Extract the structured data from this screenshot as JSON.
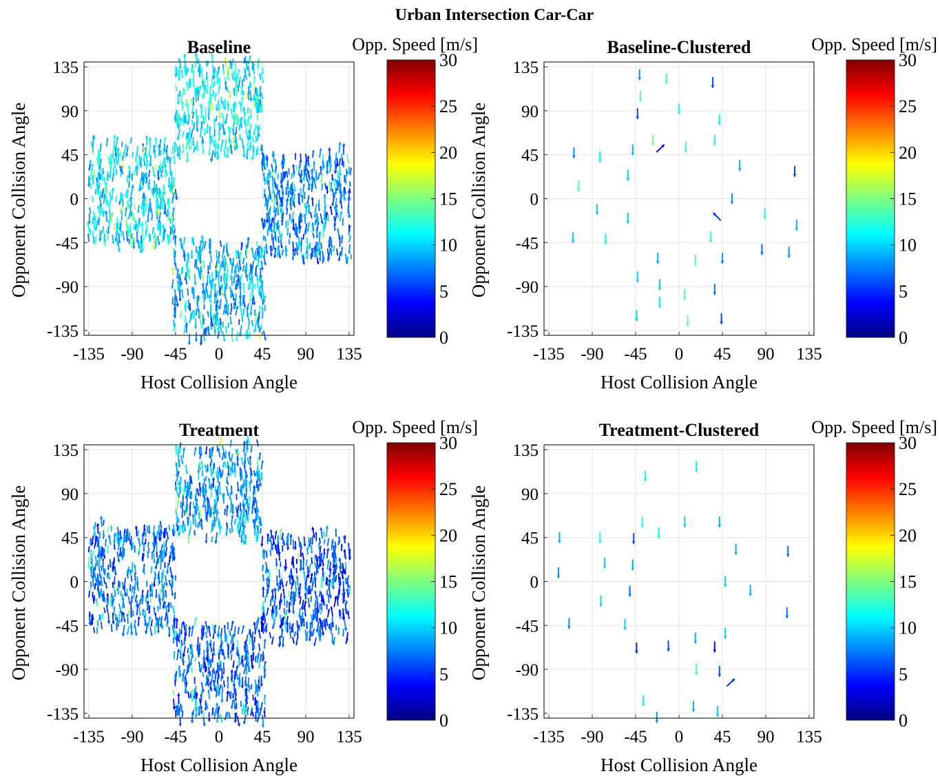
{
  "figure": {
    "suptitle": "Urban Intersection Car-Car"
  },
  "colormap": {
    "name": "jet",
    "stops": [
      "#00007f",
      "#0000ff",
      "#007fff",
      "#00ffff",
      "#7fff7f",
      "#ffff00",
      "#ff7f00",
      "#ff0000",
      "#7f0000"
    ]
  },
  "chart_data": [
    {
      "type": "quiver",
      "title": "Baseline",
      "xlabel": "Host Collision Angle",
      "ylabel": "Opponent Collision Angle",
      "xlim": [
        -140,
        140
      ],
      "ylim": [
        -140,
        140
      ],
      "xticks": [
        -135,
        -90,
        -45,
        0,
        45,
        90,
        135
      ],
      "yticks": [
        -135,
        -90,
        -45,
        0,
        45,
        90,
        135
      ],
      "grid": true,
      "colorbar": {
        "label": "Opp. Speed [m/s]",
        "range": [
          0,
          30
        ],
        "ticks": [
          0,
          5,
          10,
          15,
          20,
          25,
          30
        ]
      },
      "style": "dense",
      "regions": [
        {
          "x": [
            -135,
            -45
          ],
          "y": [
            -45,
            58
          ],
          "speed_mean": 10
        },
        {
          "x": [
            -45,
            45
          ],
          "y": [
            45,
            140
          ],
          "speed_mean": 11
        },
        {
          "x": [
            45,
            137
          ],
          "y": [
            -60,
            48
          ],
          "speed_mean": 7.5
        },
        {
          "x": [
            -48,
            48
          ],
          "y": [
            -140,
            -45
          ],
          "speed_mean": 9
        }
      ]
    },
    {
      "type": "quiver",
      "title": "Baseline-Clustered",
      "xlabel": "Host Collision Angle",
      "ylabel": "Opponent Collision Angle",
      "xlim": [
        -140,
        140
      ],
      "ylim": [
        -140,
        140
      ],
      "xticks": [
        -135,
        -90,
        -45,
        0,
        45,
        90,
        135
      ],
      "yticks": [
        -135,
        -90,
        -45,
        0,
        45,
        90,
        135
      ],
      "grid": true,
      "colorbar": {
        "label": "Opp. Speed [m/s]",
        "range": [
          0,
          30
        ],
        "ticks": [
          0,
          5,
          10,
          15,
          20,
          25,
          30
        ]
      },
      "style": "sparse",
      "points": [
        {
          "x": -41,
          "y": 132,
          "speed": 8
        },
        {
          "x": -13,
          "y": 128,
          "speed": 13
        },
        {
          "x": 35,
          "y": 124,
          "speed": 6
        },
        {
          "x": -40,
          "y": 110,
          "speed": 14
        },
        {
          "x": -43,
          "y": 92,
          "speed": 6
        },
        {
          "x": 0,
          "y": 97,
          "speed": 12
        },
        {
          "x": 42,
          "y": 86,
          "speed": 11
        },
        {
          "x": -27,
          "y": 65,
          "speed": 15
        },
        {
          "x": 37,
          "y": 65,
          "speed": 12
        },
        {
          "x": -109,
          "y": 52,
          "speed": 8
        },
        {
          "x": -82,
          "y": 48,
          "speed": 11
        },
        {
          "x": -48,
          "y": 55,
          "speed": 9
        },
        {
          "x": 7,
          "y": 58,
          "speed": 13
        },
        {
          "x": -23,
          "y": 48,
          "speed": 4,
          "dir": "se"
        },
        {
          "x": 63,
          "y": 39,
          "speed": 9
        },
        {
          "x": 120,
          "y": 33,
          "speed": 6
        },
        {
          "x": -53,
          "y": 29,
          "speed": 10
        },
        {
          "x": -104,
          "y": 18,
          "speed": 13
        },
        {
          "x": 55,
          "y": 5,
          "speed": 8
        },
        {
          "x": -85,
          "y": -6,
          "speed": 10
        },
        {
          "x": 89,
          "y": -10,
          "speed": 12
        },
        {
          "x": -53,
          "y": -15,
          "speed": 10
        },
        {
          "x": 122,
          "y": -22,
          "speed": 9
        },
        {
          "x": 43,
          "y": -22,
          "speed": 5,
          "dir": "ne"
        },
        {
          "x": 33,
          "y": -34,
          "speed": 12
        },
        {
          "x": -110,
          "y": -35,
          "speed": 10
        },
        {
          "x": -76,
          "y": -36,
          "speed": 11
        },
        {
          "x": 86,
          "y": -47,
          "speed": 7
        },
        {
          "x": 114,
          "y": -50,
          "speed": 8
        },
        {
          "x": -22,
          "y": -56,
          "speed": 9
        },
        {
          "x": 17,
          "y": -58,
          "speed": 14
        },
        {
          "x": 45,
          "y": -56,
          "speed": 8
        },
        {
          "x": -43,
          "y": -75,
          "speed": 10
        },
        {
          "x": -20,
          "y": -83,
          "speed": 10
        },
        {
          "x": 37,
          "y": -88,
          "speed": 7
        },
        {
          "x": 6,
          "y": -93,
          "speed": 13
        },
        {
          "x": -20,
          "y": -101,
          "speed": 11
        },
        {
          "x": -44,
          "y": -115,
          "speed": 10
        },
        {
          "x": 44,
          "y": -118,
          "speed": 6
        },
        {
          "x": 9,
          "y": -120,
          "speed": 14
        }
      ]
    },
    {
      "type": "quiver",
      "title": "Treatment",
      "xlabel": "Host Collision Angle",
      "ylabel": "Opponent Collision Angle",
      "xlim": [
        -140,
        140
      ],
      "ylim": [
        -140,
        140
      ],
      "xticks": [
        -135,
        -90,
        -45,
        0,
        45,
        90,
        135
      ],
      "yticks": [
        -135,
        -90,
        -45,
        0,
        45,
        90,
        135
      ],
      "grid": true,
      "colorbar": {
        "label": "Opp. Speed [m/s]",
        "range": [
          0,
          30
        ],
        "ticks": [
          0,
          5,
          10,
          15,
          20,
          25,
          30
        ]
      },
      "style": "dense",
      "regions": [
        {
          "x": [
            -135,
            -45
          ],
          "y": [
            -48,
            58
          ],
          "speed_mean": 7
        },
        {
          "x": [
            -45,
            45
          ],
          "y": [
            45,
            140
          ],
          "speed_mean": 8
        },
        {
          "x": [
            45,
            137
          ],
          "y": [
            -58,
            47
          ],
          "speed_mean": 6
        },
        {
          "x": [
            -48,
            48
          ],
          "y": [
            -140,
            -45
          ],
          "speed_mean": 6.5
        }
      ]
    },
    {
      "type": "quiver",
      "title": "Treatment-Clustered",
      "xlabel": "Host Collision Angle",
      "ylabel": "Opponent Collision Angle",
      "xlim": [
        -140,
        140
      ],
      "ylim": [
        -140,
        140
      ],
      "xticks": [
        -135,
        -90,
        -45,
        0,
        45,
        90,
        135
      ],
      "yticks": [
        -135,
        -90,
        -45,
        0,
        45,
        90,
        135
      ],
      "grid": true,
      "colorbar": {
        "label": "Opp. Speed [m/s]",
        "range": [
          0,
          30
        ],
        "ticks": [
          0,
          5,
          10,
          15,
          20,
          25,
          30
        ]
      },
      "style": "sparse",
      "points": [
        {
          "x": 18,
          "y": 123,
          "speed": 11
        },
        {
          "x": -35,
          "y": 113,
          "speed": 12
        },
        {
          "x": -38,
          "y": 66,
          "speed": 12
        },
        {
          "x": 6,
          "y": 66,
          "speed": 10
        },
        {
          "x": 42,
          "y": 66,
          "speed": 9
        },
        {
          "x": -21,
          "y": 55,
          "speed": 11
        },
        {
          "x": -124,
          "y": 50,
          "speed": 9
        },
        {
          "x": -82,
          "y": 50,
          "speed": 12
        },
        {
          "x": -47,
          "y": 49,
          "speed": 6
        },
        {
          "x": 59,
          "y": 38,
          "speed": 9
        },
        {
          "x": 113,
          "y": 36,
          "speed": 7
        },
        {
          "x": -77,
          "y": 24,
          "speed": 10
        },
        {
          "x": -48,
          "y": 22,
          "speed": 9
        },
        {
          "x": -125,
          "y": 14,
          "speed": 8
        },
        {
          "x": 48,
          "y": 5,
          "speed": 10
        },
        {
          "x": 74,
          "y": -4,
          "speed": 9
        },
        {
          "x": -51,
          "y": -5,
          "speed": 7
        },
        {
          "x": -81,
          "y": -15,
          "speed": 10
        },
        {
          "x": 112,
          "y": -27,
          "speed": 7
        },
        {
          "x": -114,
          "y": -38,
          "speed": 8
        },
        {
          "x": -56,
          "y": -39,
          "speed": 10
        },
        {
          "x": 48,
          "y": -48,
          "speed": 10
        },
        {
          "x": 17,
          "y": -53,
          "speed": 9
        },
        {
          "x": -11,
          "y": -61,
          "speed": 6
        },
        {
          "x": 37,
          "y": -62,
          "speed": 4
        },
        {
          "x": -44,
          "y": -63,
          "speed": 5
        },
        {
          "x": 18,
          "y": -85,
          "speed": 13
        },
        {
          "x": 42,
          "y": -87,
          "speed": 6
        },
        {
          "x": 50,
          "y": -107,
          "speed": 5,
          "dir": "se"
        },
        {
          "x": -37,
          "y": -117,
          "speed": 11
        },
        {
          "x": 15,
          "y": -123,
          "speed": 9
        },
        {
          "x": 40,
          "y": -128,
          "speed": 10
        },
        {
          "x": -23,
          "y": -134,
          "speed": 8
        }
      ]
    }
  ]
}
